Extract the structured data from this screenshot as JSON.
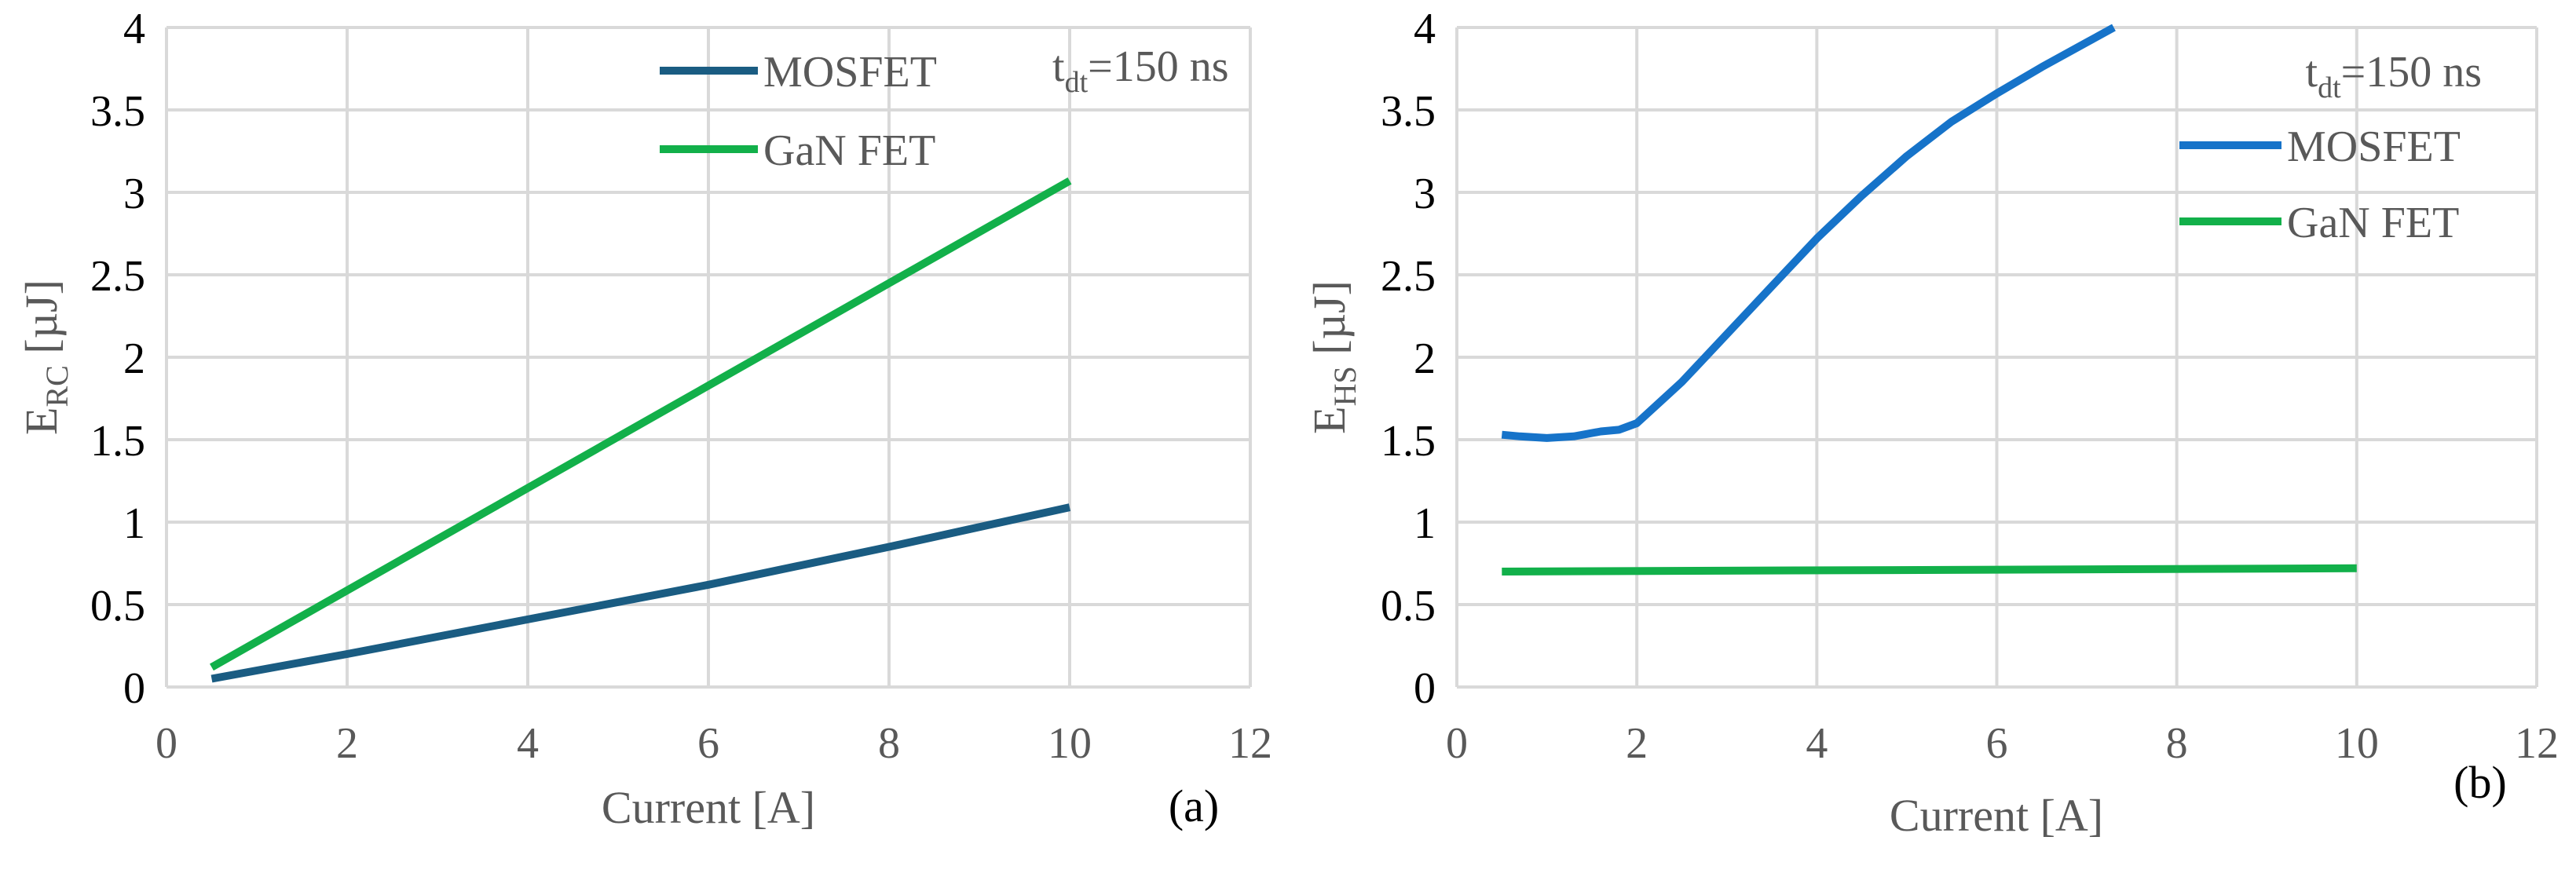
{
  "colors": {
    "grid": "#d9d9d9",
    "tick_text": "#595959",
    "panel_label_text": "#000000",
    "mosfet_a": "#1a5c82",
    "mosfet_b": "#1673c9",
    "gan": "#12b04a"
  },
  "chart_data": [
    {
      "type": "line",
      "panel_label": "(a)",
      "xlabel": "Current [A]",
      "ylabel_main": "E",
      "ylabel_sub": "RC",
      "ylabel_unit": " [µJ]",
      "xlim": [
        0,
        12
      ],
      "ylim": [
        0,
        4
      ],
      "x_ticks": [
        0,
        2,
        4,
        6,
        8,
        10,
        12
      ],
      "x_tick_labels": [
        "0",
        "2",
        "4",
        "6",
        "8",
        "10",
        "12"
      ],
      "y_ticks": [
        0,
        0.5,
        1,
        1.5,
        2,
        2.5,
        3,
        3.5,
        4
      ],
      "y_tick_labels": [
        "0",
        "0.5",
        "1",
        "1.5",
        "2",
        "2.5",
        "3",
        "3.5",
        "4"
      ],
      "grid": true,
      "legend_position": "top-center",
      "annotation": {
        "main": "t",
        "sub": "dt",
        "rest": "=150 ns",
        "position": "top-right"
      },
      "series": [
        {
          "name": "MOSFET",
          "color_key": "mosfet_a",
          "x": [
            0.5,
            2,
            4,
            6,
            8,
            10
          ],
          "y": [
            0.05,
            0.2,
            0.41,
            0.62,
            0.85,
            1.09
          ]
        },
        {
          "name": "GaN FET",
          "color_key": "gan",
          "x": [
            0.5,
            10
          ],
          "y": [
            0.12,
            3.07
          ]
        }
      ]
    },
    {
      "type": "line",
      "panel_label": "(b)",
      "xlabel": "Current [A]",
      "ylabel_main": "E",
      "ylabel_sub": "HS",
      "ylabel_unit": "  [µJ]",
      "xlim": [
        0,
        12
      ],
      "ylim": [
        0,
        4
      ],
      "x_ticks": [
        0,
        2,
        4,
        6,
        8,
        10,
        12
      ],
      "x_tick_labels": [
        "0",
        "2",
        "4",
        "6",
        "8",
        "10",
        "12"
      ],
      "y_ticks": [
        0,
        0.5,
        1,
        1.5,
        2,
        2.5,
        3,
        3.5,
        4
      ],
      "y_tick_labels": [
        "0",
        "0.5",
        "1",
        "1.5",
        "2",
        "2.5",
        "3",
        "3.5",
        "4"
      ],
      "grid": true,
      "legend_position": "top-right",
      "annotation": {
        "main": "t",
        "sub": "dt",
        "rest": "=150 ns",
        "position": "top-right"
      },
      "series": [
        {
          "name": "MOSFET",
          "color_key": "mosfet_b",
          "x": [
            0.5,
            0.7,
            1.0,
            1.3,
            1.6,
            1.8,
            2.0,
            2.5,
            3.0,
            3.5,
            4.0,
            4.5,
            5.0,
            5.5,
            6.0,
            6.5,
            7.0,
            7.3
          ],
          "y": [
            1.53,
            1.52,
            1.51,
            1.52,
            1.55,
            1.56,
            1.6,
            1.85,
            2.14,
            2.43,
            2.72,
            2.98,
            3.22,
            3.43,
            3.6,
            3.76,
            3.91,
            4.0
          ]
        },
        {
          "name": "GaN FET",
          "color_key": "gan",
          "x": [
            0.5,
            10
          ],
          "y": [
            0.7,
            0.72
          ]
        }
      ]
    }
  ]
}
